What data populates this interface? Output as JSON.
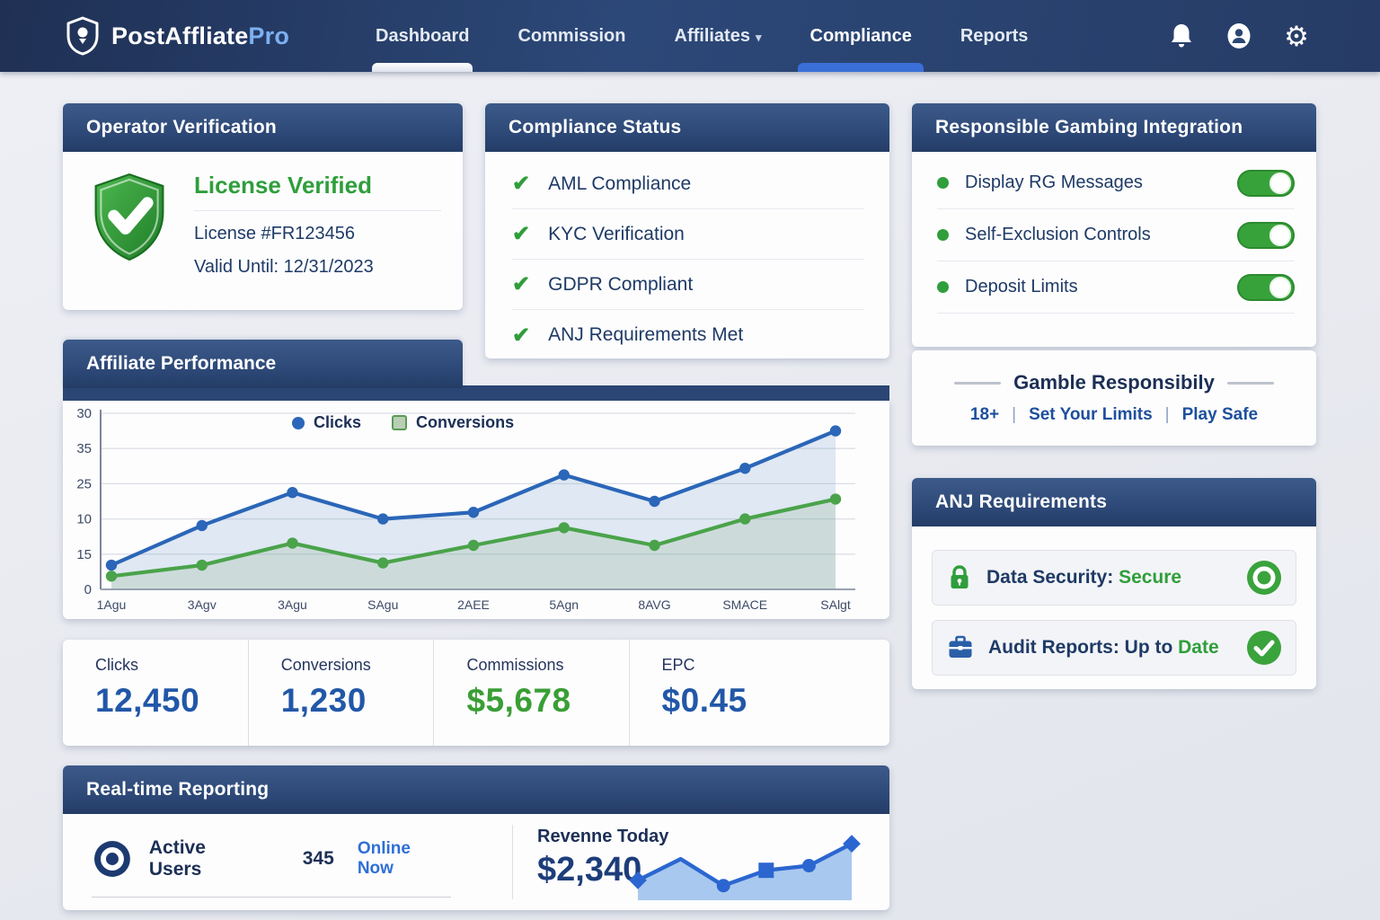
{
  "nav": {
    "brand": {
      "main": "PostAffliate",
      "accent": "Pro"
    },
    "items": [
      {
        "label": "Dashboard",
        "indicator": "white"
      },
      {
        "label": "Commission",
        "indicator": "none"
      },
      {
        "label": "Affiliates",
        "indicator": "none",
        "has_caret": true
      },
      {
        "label": "Compliance",
        "indicator": "blue",
        "active": true
      },
      {
        "label": "Reports",
        "indicator": "none"
      }
    ],
    "icon_buttons": [
      "bell-icon",
      "account-icon",
      "gear-icon"
    ]
  },
  "icons": {
    "check": "✔",
    "caret": "▾",
    "gear": "⚙"
  },
  "operator_verification": {
    "title": "Operator Verification",
    "status": "License Verified",
    "license_line": "License #FR123456",
    "valid_line": "Valid Until: 12/31/2023"
  },
  "compliance_status": {
    "title": "Compliance Status",
    "items": [
      "AML Compliance",
      "KYC Verification",
      "GDPR Compliant",
      "ANJ Requirements Met"
    ]
  },
  "rg_integration": {
    "title": "Responsible Gambing Integration",
    "toggles": [
      {
        "label": "Display RG Messages",
        "state": "on"
      },
      {
        "label": "Self-Exclusion Controls",
        "state": "on"
      },
      {
        "label": "Deposit Limits",
        "state": "on"
      }
    ]
  },
  "gamble_responsibly": {
    "title": "Gamble Responsibily",
    "links": [
      "18+",
      "Set Your Limits",
      "Play Safe"
    ],
    "separator": "|"
  },
  "anj_requirements": {
    "title": "ANJ Requirements",
    "rows": [
      {
        "label_dark": "Data Security: ",
        "label_green": "Secure",
        "icon": "lock-icon",
        "status_icon": "target-circle-icon"
      },
      {
        "label_dark": "Audit Reports: Up to ",
        "label_green": "Date",
        "icon": "briefcase-icon",
        "status_icon": "check-circle-icon"
      }
    ]
  },
  "performance": {
    "title": "Affiliate Performance"
  },
  "stats": {
    "cells": [
      {
        "label": "Clicks",
        "value": "12,450",
        "color": "blue"
      },
      {
        "label": "Conversions",
        "value": "1,230",
        "color": "blue"
      },
      {
        "label": "Commissions",
        "value": "$5,678",
        "color": "green"
      },
      {
        "label": "EPC",
        "value": "$0.45",
        "color": "blue"
      }
    ]
  },
  "realtime": {
    "title": "Real-time Reporting",
    "active_users_label": "Active Users",
    "active_users_count": "345",
    "online_label": "Online Now",
    "revenue_label": "Revenne Today",
    "revenue_value": "$2,340"
  },
  "colors": {
    "navbar_navy": "#2c4878",
    "header_navy": "#2b4674",
    "accent_blue": "#2b66b8",
    "accent_green": "#2f9e3b",
    "stat_blue": "#2257a8",
    "link_blue": "#2f6fd6",
    "brand_accent": "#7db0f2",
    "page_bg": "#e9ebf1"
  },
  "chart_data": [
    {
      "type": "line",
      "title": "Affiliate Performance",
      "series": [
        {
          "name": "Clicks",
          "color": "#2b66b8",
          "fill": "rgba(120,160,205,0.22)",
          "values": [
            5.5,
            14.5,
            22,
            16,
            17.5,
            26,
            20,
            27.5,
            36
          ]
        },
        {
          "name": "Conversions",
          "color": "#4aa34a",
          "fill": "rgba(130,170,120,0.20)",
          "values": [
            3,
            5.5,
            10.5,
            6,
            10,
            14,
            10,
            16,
            20.5
          ]
        }
      ],
      "x_tick_labels": [
        "1Agu",
        "3Agv",
        "3Agu",
        "SAgu",
        "2AEE",
        "5Agn",
        "8AVG",
        "SMACE",
        "SAlgt"
      ],
      "y_tick_labels_top_to_bottom": [
        "30",
        "35",
        "25",
        "10",
        "15",
        "0"
      ],
      "ylim": [
        0,
        40
      ],
      "grid": true,
      "legend_position": "top-center"
    },
    {
      "type": "area",
      "title": "Revenue Today sparkline",
      "values": [
        30,
        62,
        22,
        45,
        52,
        85
      ],
      "markers": [
        "diamond",
        "none",
        "circle",
        "square",
        "circle",
        "diamond"
      ],
      "ylim": [
        0,
        100
      ],
      "color": "#2b66d0",
      "fill": "#a9c8ef"
    }
  ]
}
